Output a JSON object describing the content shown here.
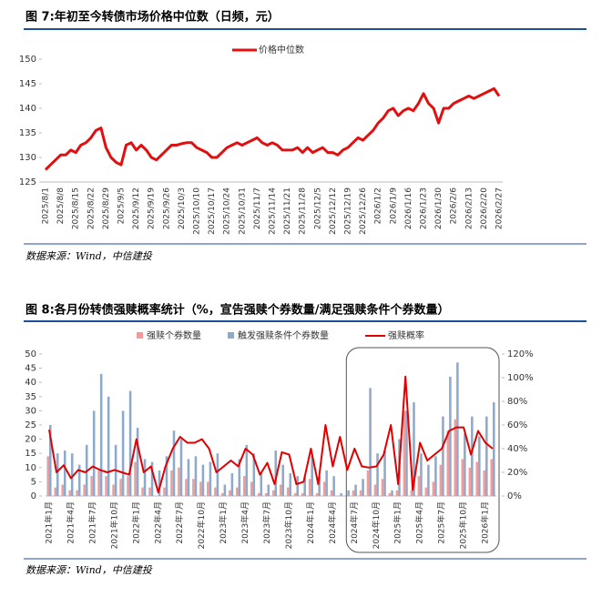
{
  "chart_data": [
    {
      "type": "line",
      "title": "图 7:年初至今转债市场价格中位数（日频，元）",
      "source": "数据来源：Wind，中信建投",
      "categories": [
        "2025/8/1",
        null,
        null,
        "2025/8/8",
        null,
        null,
        "2025/8/15",
        null,
        null,
        "2025/8/22",
        null,
        null,
        "2025/8/29",
        null,
        null,
        "2025/9/5",
        null,
        null,
        "2025/9/12",
        null,
        null,
        "2025/9/19",
        null,
        null,
        "2025/9/26",
        null,
        null,
        "2025/10/3",
        null,
        null,
        "2025/10/10",
        null,
        null,
        "2025/10/17",
        null,
        null,
        "2025/10/24",
        null,
        null,
        "2025/10/31",
        null,
        null,
        "2025/11/7",
        null,
        null,
        "2025/11/14",
        null,
        null,
        "2025/11/21",
        null,
        null,
        "2025/11/28",
        null,
        null,
        "2025/12/5",
        null,
        null,
        "2025/12/12",
        null,
        null,
        "2025/12/19",
        null,
        null,
        "2025/12/26",
        null,
        null,
        "2026/1/2",
        null,
        null,
        "2026/1/9",
        null,
        null,
        "2026/1/16",
        null,
        null,
        "2026/1/23",
        null,
        null,
        "2026/1/30",
        null,
        null,
        "2026/2/6",
        null,
        null,
        "2026/2/13",
        null,
        null,
        "2026/2/20",
        null,
        null,
        "2026/2/27"
      ],
      "series": [
        {
          "name": "价格中位数",
          "color": "#e01010",
          "values": [
            127.5,
            128.5,
            129.5,
            130.5,
            130.5,
            131.5,
            131,
            132.5,
            133,
            134,
            135.5,
            136,
            132,
            130,
            129,
            128.5,
            132.5,
            133,
            131.5,
            132.5,
            131.5,
            130,
            129.5,
            130.5,
            131.5,
            132.5,
            132.5,
            132.8,
            133,
            133,
            132,
            131.5,
            131,
            130,
            130,
            131,
            132,
            132.5,
            133,
            132.5,
            133,
            133.5,
            134,
            133,
            132.5,
            133,
            132.5,
            131.5,
            131.5,
            131.5,
            132,
            131,
            132,
            131,
            131.5,
            132,
            131,
            131,
            130.5,
            131.5,
            132,
            133,
            134,
            133.5,
            134.5,
            135.5,
            137,
            138,
            139.5,
            140,
            138.5,
            139.5,
            140,
            139.5,
            141,
            143,
            141,
            140,
            137,
            140,
            140,
            141,
            141.5,
            142,
            142.5,
            142,
            142.5,
            143,
            143.5,
            144,
            142.5
          ]
        }
      ],
      "ylim": [
        125,
        150
      ],
      "yticks": [
        125,
        130,
        135,
        140,
        145,
        150
      ],
      "grid": false
    },
    {
      "type": "combo",
      "title": "图 8:各月份转债强赎概率统计（%，宣告强赎个券数量/满足强赎条件个券数量）",
      "source": "数据来源：Wind，中信建投",
      "categories": [
        "2021年1月",
        null,
        null,
        "2021年4月",
        null,
        null,
        "2021年7月",
        null,
        null,
        "2021年10月",
        null,
        null,
        "2022年1月",
        null,
        null,
        "2022年4月",
        null,
        null,
        "2022年7月",
        null,
        null,
        "2022年10月",
        null,
        null,
        "2023年1月",
        null,
        null,
        "2023年4月",
        null,
        null,
        "2023年7月",
        null,
        null,
        "2023年10月",
        null,
        null,
        "2024年1月",
        null,
        null,
        "2024年4月",
        null,
        null,
        "2024年7月",
        null,
        null,
        "2024年10月",
        null,
        null,
        "2025年1月",
        null,
        null,
        "2025年4月",
        null,
        null,
        "2025年7月",
        null,
        null,
        "2025年10月",
        null,
        null,
        "2026年1月",
        null
      ],
      "series": [
        {
          "name": "强赎个券数量",
          "type": "bar",
          "color": "#f19c9c",
          "values": [
            14,
            3,
            4,
            2,
            2,
            4,
            7,
            9,
            7,
            4,
            6,
            7,
            12,
            3,
            3,
            0,
            3,
            9,
            10,
            6,
            6,
            5,
            5,
            3,
            1,
            2,
            3,
            7,
            5,
            1,
            1,
            2,
            4,
            3,
            1,
            1,
            6,
            1,
            5,
            2,
            0,
            0,
            2,
            2,
            9,
            4,
            6,
            1,
            2,
            30,
            2,
            7,
            3,
            5,
            11,
            23,
            27,
            13,
            10,
            12,
            9,
            13
          ]
        },
        {
          "name": "触发强赎条件个券数量",
          "type": "bar",
          "color": "#8eaacb",
          "values": [
            25,
            15,
            16,
            15,
            11,
            18,
            30,
            43,
            35,
            18,
            30,
            37,
            24,
            13,
            12,
            9,
            14,
            23,
            20,
            13,
            14,
            11,
            12,
            15,
            4,
            8,
            13,
            18,
            15,
            8,
            4,
            16,
            11,
            8,
            7,
            7,
            14,
            7,
            9,
            7,
            1,
            2,
            4,
            6,
            38,
            15,
            16,
            2,
            20,
            30,
            33,
            15,
            11,
            14,
            28,
            42,
            47,
            22,
            28,
            21,
            28,
            33
          ]
        },
        {
          "name": "强赎概率",
          "type": "line",
          "axis": "y2",
          "color": "#e00000",
          "values": [
            56,
            20,
            26,
            15,
            22,
            20,
            25,
            22,
            20,
            22,
            20,
            18,
            48,
            20,
            25,
            3,
            25,
            40,
            50,
            45,
            45,
            48,
            40,
            20,
            25,
            30,
            25,
            40,
            35,
            18,
            28,
            10,
            37,
            35,
            10,
            12,
            40,
            10,
            60,
            25,
            50,
            22,
            40,
            25,
            24,
            25,
            35,
            60,
            10,
            101,
            5,
            45,
            30,
            35,
            40,
            55,
            58,
            58,
            35,
            55,
            45,
            40
          ]
        }
      ],
      "ylim": [
        0,
        50
      ],
      "yticks": [
        0,
        5,
        10,
        15,
        20,
        25,
        30,
        35,
        40,
        45,
        50
      ],
      "y2lim": [
        0,
        120
      ],
      "y2ticks": [
        {
          "value": 0,
          "label": "0%"
        },
        {
          "value": 20,
          "label": "20%"
        },
        {
          "value": 40,
          "label": "40%"
        },
        {
          "value": 60,
          "label": "60%"
        },
        {
          "value": 80,
          "label": "80%"
        },
        {
          "value": 100,
          "label": "100%"
        },
        {
          "value": 120,
          "label": "120%"
        }
      ],
      "grid": false
    }
  ]
}
